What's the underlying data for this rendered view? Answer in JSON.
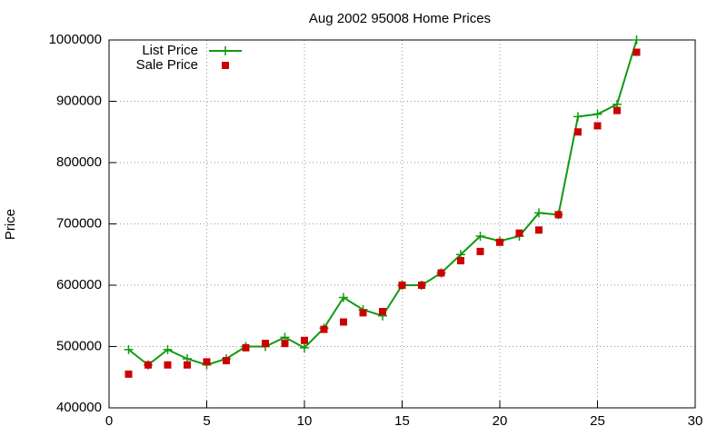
{
  "chart_data": {
    "type": "line",
    "title": "Aug 2002 95008 Home Prices",
    "y_label": "Price",
    "x": [
      1,
      2,
      3,
      4,
      5,
      6,
      7,
      8,
      9,
      10,
      11,
      12,
      13,
      14,
      15,
      16,
      17,
      18,
      19,
      20,
      21,
      22,
      23,
      24,
      25,
      26,
      27
    ],
    "series": [
      {
        "name": "List Price",
        "color": "#119911",
        "style": "linespoints",
        "values": [
          495000,
          470000,
          495000,
          480000,
          470000,
          480000,
          500000,
          500000,
          515000,
          498000,
          530000,
          580000,
          560000,
          550000,
          600000,
          600000,
          620000,
          650000,
          680000,
          672000,
          680000,
          718000,
          715000,
          875000,
          879000,
          895000,
          1000000
        ]
      },
      {
        "name": "Sale Price",
        "color": "#cc0000",
        "style": "points",
        "values": [
          455000,
          470000,
          470000,
          470000,
          475000,
          477000,
          498000,
          505000,
          505000,
          510000,
          528000,
          540000,
          555000,
          557000,
          600000,
          600000,
          620000,
          640000,
          655000,
          670000,
          685000,
          690000,
          715000,
          850000,
          860000,
          885000,
          980000
        ]
      }
    ],
    "xlim": [
      0,
      30
    ],
    "xticks": [
      0,
      5,
      10,
      15,
      20,
      25,
      30
    ],
    "ylim": [
      400000,
      1000000
    ],
    "yticks": [
      400000,
      500000,
      600000,
      700000,
      800000,
      900000,
      1000000
    ],
    "grid": true,
    "legend": "top-left"
  }
}
